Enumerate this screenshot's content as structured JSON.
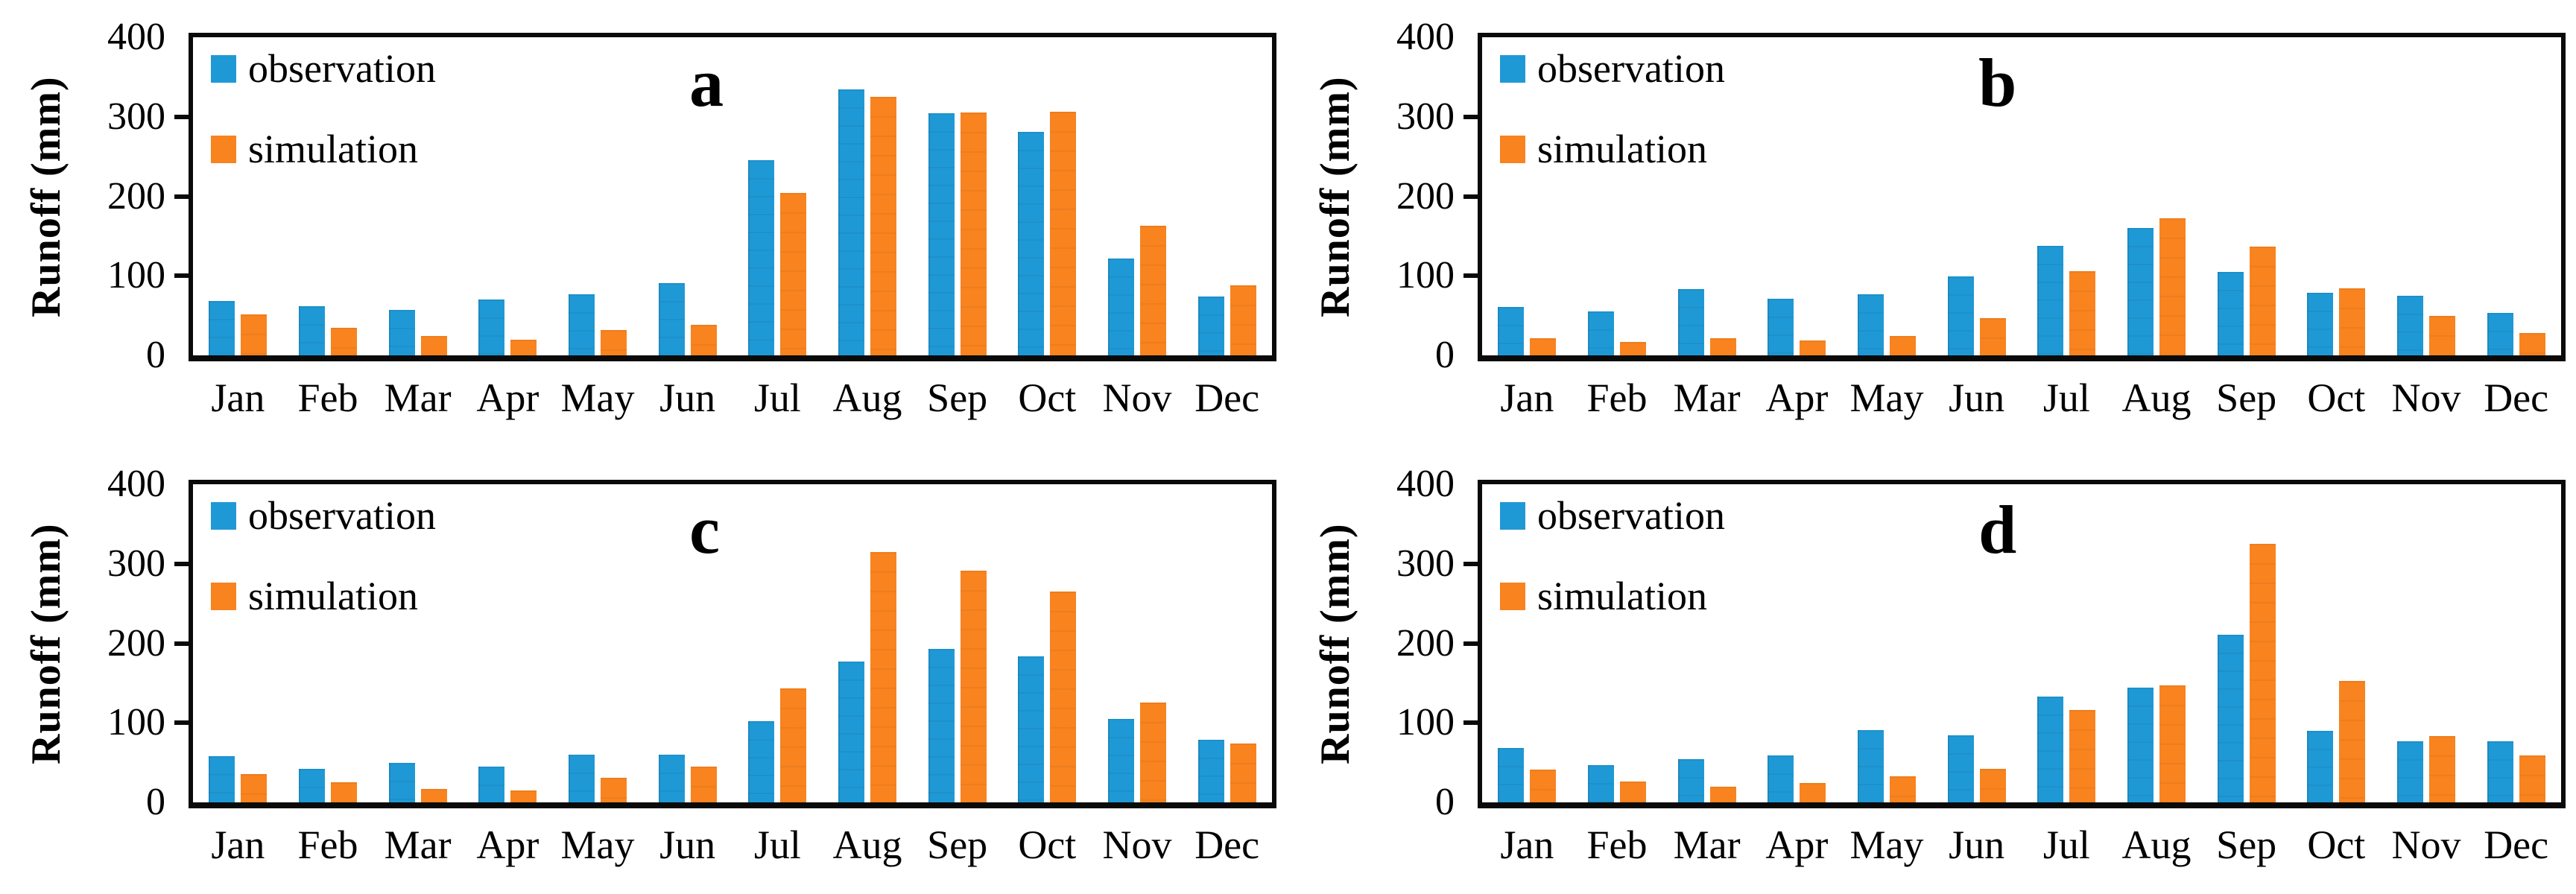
{
  "figure": {
    "ylabel": "Runoff (mm)",
    "ymax": 400,
    "yticks": [
      "0",
      "100",
      "200",
      "300",
      "400"
    ],
    "months": [
      "Jan",
      "Feb",
      "Mar",
      "Apr",
      "May",
      "Jun",
      "Jul",
      "Aug",
      "Sep",
      "Oct",
      "Nov",
      "Dec"
    ],
    "legend": [
      {
        "name": "observation",
        "color": "#1f99d5"
      },
      {
        "name": "simulation",
        "color": "#f8831f"
      }
    ],
    "colors": {
      "observation": "#1f99d5",
      "simulation": "#f8831f",
      "axis": "#0a0a0a"
    }
  },
  "chart_data": [
    {
      "type": "bar",
      "title": "a",
      "ylabel": "Runoff (mm)",
      "ylim": [
        0,
        400
      ],
      "grid": false,
      "legend_position": "upper-left",
      "categories": [
        "Jan",
        "Feb",
        "Mar",
        "Apr",
        "May",
        "Jun",
        "Jul",
        "Aug",
        "Sep",
        "Oct",
        "Nov",
        "Dec"
      ],
      "series": [
        {
          "name": "observation",
          "values": [
            68,
            62,
            57,
            70,
            77,
            91,
            245,
            334,
            304,
            281,
            122,
            74
          ]
        },
        {
          "name": "simulation",
          "values": [
            52,
            35,
            24,
            20,
            32,
            38,
            204,
            325,
            305,
            306,
            163,
            88
          ]
        }
      ]
    },
    {
      "type": "bar",
      "title": "b",
      "ylabel": "Runoff (mm)",
      "ylim": [
        0,
        400
      ],
      "grid": false,
      "legend_position": "upper-left",
      "categories": [
        "Jan",
        "Feb",
        "Mar",
        "Apr",
        "May",
        "Jun",
        "Jul",
        "Aug",
        "Sep",
        "Oct",
        "Nov",
        "Dec"
      ],
      "series": [
        {
          "name": "observation",
          "values": [
            61,
            55,
            83,
            71,
            77,
            99,
            138,
            160,
            105,
            79,
            75,
            53
          ]
        },
        {
          "name": "simulation",
          "values": [
            22,
            17,
            22,
            19,
            24,
            47,
            106,
            172,
            137,
            84,
            50,
            28
          ]
        }
      ]
    },
    {
      "type": "bar",
      "title": "c",
      "ylabel": "Runoff (mm)",
      "ylim": [
        0,
        400
      ],
      "grid": false,
      "legend_position": "upper-left",
      "categories": [
        "Jan",
        "Feb",
        "Mar",
        "Apr",
        "May",
        "Jun",
        "Jul",
        "Aug",
        "Sep",
        "Oct",
        "Nov",
        "Dec"
      ],
      "series": [
        {
          "name": "observation",
          "values": [
            58,
            42,
            50,
            45,
            60,
            60,
            102,
            177,
            193,
            184,
            105,
            79
          ]
        },
        {
          "name": "simulation",
          "values": [
            36,
            25,
            17,
            15,
            31,
            45,
            143,
            315,
            291,
            265,
            126,
            74
          ]
        }
      ]
    },
    {
      "type": "bar",
      "title": "d",
      "ylabel": "Runoff (mm)",
      "ylim": [
        0,
        400
      ],
      "grid": false,
      "legend_position": "upper-left",
      "categories": [
        "Jan",
        "Feb",
        "Mar",
        "Apr",
        "May",
        "Jun",
        "Jul",
        "Aug",
        "Sep",
        "Oct",
        "Nov",
        "Dec"
      ],
      "series": [
        {
          "name": "observation",
          "values": [
            68,
            47,
            54,
            59,
            91,
            84,
            133,
            144,
            211,
            90,
            77,
            77
          ]
        },
        {
          "name": "simulation",
          "values": [
            41,
            26,
            20,
            24,
            33,
            42,
            116,
            147,
            325,
            153,
            83,
            59
          ]
        }
      ]
    }
  ]
}
